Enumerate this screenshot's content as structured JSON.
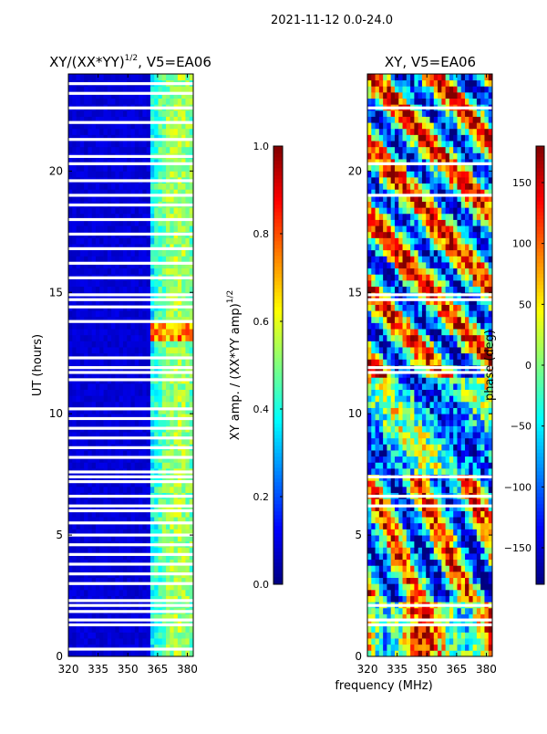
{
  "figure": {
    "suptitle": "2021-11-12 0.0-24.0"
  },
  "chart_data": [
    {
      "type": "heatmap",
      "title_main": "XY/(XX*YY)",
      "title_sup": "1/2",
      "title_tail": ", V5=EA06",
      "xlabel": "",
      "ylabel": "UT (hours)",
      "xlim": [
        320,
        383
      ],
      "ylim": [
        0,
        24
      ],
      "xticks": [
        320,
        335,
        350,
        365,
        380
      ],
      "yticks": [
        0,
        5,
        10,
        15,
        20
      ],
      "colorbar": {
        "label_main": "XY amp. / (XX*YY amp)",
        "label_sup": "1/2",
        "range": [
          0.0,
          1.0
        ],
        "ticks": [
          "0.0",
          "0.2",
          "0.4",
          "0.6",
          "0.8",
          "1.0"
        ],
        "colormap": "jet"
      },
      "gap_rows_ut": [
        0.3,
        1.3,
        1.5,
        1.85,
        2.1,
        2.3,
        3.0,
        3.4,
        3.8,
        4.2,
        4.6,
        5.0,
        5.5,
        6.0,
        6.2,
        6.6,
        7.2,
        7.4,
        7.6,
        8.2,
        8.6,
        9.0,
        9.4,
        9.8,
        10.2,
        11.4,
        11.7,
        11.9,
        12.3,
        13.8,
        14.4,
        14.7,
        14.9,
        15.6,
        16.2,
        16.8,
        17.4,
        18.0,
        18.6,
        19.0,
        19.6,
        20.3,
        20.6,
        21.3,
        22.0,
        22.6,
        23.2,
        23.6
      ]
    },
    {
      "type": "heatmap",
      "title_main": "XY, V5=EA06",
      "xlabel": "frequency (MHz)",
      "ylabel": "",
      "xlim": [
        320,
        383
      ],
      "ylim": [
        0,
        24
      ],
      "xticks": [
        320,
        335,
        350,
        365,
        380
      ],
      "yticks": [
        0,
        5,
        10,
        15,
        20
      ],
      "colorbar": {
        "label": "phase (deg)",
        "range": [
          -180,
          180
        ],
        "ticks": [
          "−150",
          "−100",
          "−50",
          "0",
          "50",
          "100",
          "150"
        ],
        "tick_values": [
          -150,
          -100,
          -50,
          0,
          50,
          100,
          150
        ],
        "colormap": "jet"
      },
      "gap_rows_ut": [
        1.3,
        1.5,
        2.1,
        6.2,
        6.6,
        7.4,
        11.7,
        11.9,
        14.7,
        14.9,
        19.0,
        20.3,
        22.6
      ]
    }
  ]
}
